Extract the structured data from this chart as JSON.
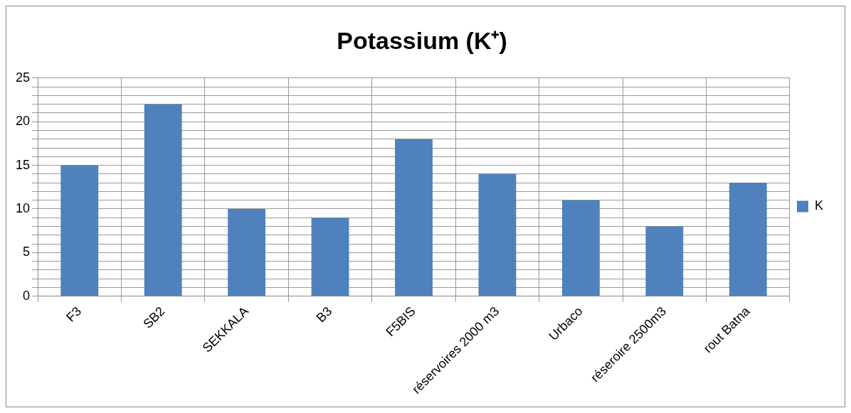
{
  "chart_data": {
    "type": "bar",
    "title": "Potassium (K⁺)",
    "categories": [
      "F3",
      "SB2",
      "SEKKALA",
      "B3",
      "F5BIS",
      "réservoires 2000 m3",
      "Urbaco",
      "réseroire 2500m3",
      "rout Batna"
    ],
    "series": [
      {
        "name": "K",
        "color": "#4f81bd",
        "values": [
          15,
          22,
          10,
          9,
          18,
          14,
          11,
          8,
          13
        ]
      }
    ],
    "ylim": [
      0,
      25
    ],
    "yticks": [
      0,
      {
        "value": 1,
        "label": null
      },
      {
        "value": 2,
        "label": null
      },
      {
        "value": 3,
        "label": null
      },
      {
        "value": 4,
        "label": null
      },
      5,
      {
        "value": 6,
        "label": null
      },
      {
        "value": 7,
        "label": null
      },
      {
        "value": 8,
        "label": null
      },
      {
        "value": 9,
        "label": null
      },
      10,
      {
        "value": 11,
        "label": null
      },
      {
        "value": 12,
        "label": null
      },
      {
        "value": 13,
        "label": null
      },
      {
        "value": 14,
        "label": null
      },
      15,
      {
        "value": 16,
        "label": null
      },
      {
        "value": 17,
        "label": null
      },
      {
        "value": 18,
        "label": null
      },
      {
        "value": 19,
        "label": null
      },
      20,
      {
        "value": 21,
        "label": null
      },
      {
        "value": 22,
        "label": null
      },
      {
        "value": 23,
        "label": null
      },
      {
        "value": 24,
        "label": null
      },
      25
    ],
    "grid": true,
    "legend": "right"
  }
}
